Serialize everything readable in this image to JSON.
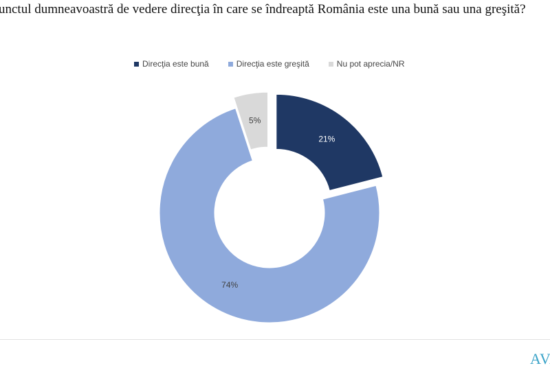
{
  "chart_data": {
    "type": "pie",
    "subtype": "donut",
    "title": "unctul dumneavoastră de vedere direcţia în care se îndreaptă România este una bună sau una greşită?",
    "legend_position": "top",
    "categories": [
      "Direcţia este bună",
      "Direcţia este greşită",
      "Nu pot aprecia/NR"
    ],
    "values": [
      21,
      74,
      5
    ],
    "labels": [
      "21%",
      "74%",
      "5%"
    ],
    "colors": [
      "#1f3864",
      "#8faadc",
      "#d9d9d9"
    ],
    "exploded": [
      true,
      false,
      true
    ]
  },
  "logo": "AVA"
}
